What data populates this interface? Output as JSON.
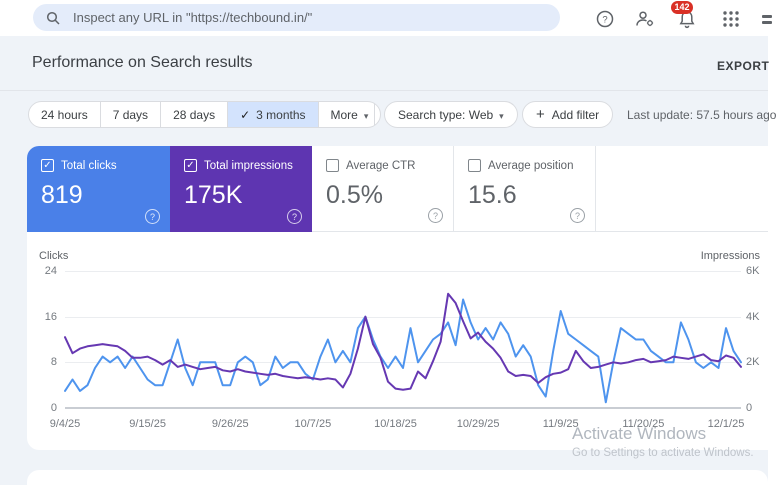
{
  "topbar": {
    "search_placeholder": "Inspect any URL in \"https://techbound.in/\"",
    "notification_count": "142"
  },
  "icons": {
    "search": "magnifier",
    "help": "question-mark-circle",
    "account": "person-with-gear",
    "notifications": "bell",
    "apps": "3x3-dot-grid",
    "export": "download-arrow",
    "check": "✓",
    "caret": "▾",
    "plus": "+"
  },
  "header": {
    "title": "Performance on Search results",
    "export_label": "EXPORT"
  },
  "filters": {
    "date_ranges": [
      "24 hours",
      "7 days",
      "28 days",
      "3 months"
    ],
    "selected_range": "3 months",
    "more_label": "More",
    "search_type_label": "Search type: Web",
    "add_filter_label": "Add filter",
    "last_update": "Last update: 57.5 hours ago"
  },
  "metrics": [
    {
      "label": "Total clicks",
      "value": "819",
      "checked": true,
      "color": "#4a80e8"
    },
    {
      "label": "Total impressions",
      "value": "175K",
      "checked": true,
      "color": "#5e35b1"
    },
    {
      "label": "Average CTR",
      "value": "0.5%",
      "checked": false
    },
    {
      "label": "Average position",
      "value": "15.6",
      "checked": false
    }
  ],
  "watermark": {
    "line1": "Activate Windows",
    "line2": "Go to Settings to activate Windows."
  },
  "chart_data": {
    "type": "line",
    "grid": true,
    "left_axis": {
      "label": "Clicks",
      "ticks": [
        "24",
        "16",
        "8",
        "0"
      ],
      "min": 0,
      "max": 24
    },
    "right_axis": {
      "label": "Impressions",
      "ticks": [
        "6K",
        "4K",
        "2K",
        "0"
      ],
      "min": 0,
      "max": 6000
    },
    "x_tick_labels": [
      "9/4/25",
      "9/15/25",
      "9/26/25",
      "10/7/25",
      "10/18/25",
      "10/29/25",
      "11/9/25",
      "11/20/25",
      "12/1/25"
    ],
    "x_tick_days": [
      0,
      11,
      22,
      33,
      44,
      55,
      66,
      77,
      88
    ],
    "x": [
      "9/4/25",
      "9/5/25",
      "9/6/25",
      "9/7/25",
      "9/8/25",
      "9/9/25",
      "9/10/25",
      "9/11/25",
      "9/12/25",
      "9/13/25",
      "9/14/25",
      "9/15/25",
      "9/16/25",
      "9/17/25",
      "9/18/25",
      "9/19/25",
      "9/20/25",
      "9/21/25",
      "9/22/25",
      "9/23/25",
      "9/24/25",
      "9/25/25",
      "9/26/25",
      "9/27/25",
      "9/28/25",
      "9/29/25",
      "9/30/25",
      "10/1/25",
      "10/2/25",
      "10/3/25",
      "10/4/25",
      "10/5/25",
      "10/6/25",
      "10/7/25",
      "10/8/25",
      "10/9/25",
      "10/10/25",
      "10/11/25",
      "10/12/25",
      "10/13/25",
      "10/14/25",
      "10/15/25",
      "10/16/25",
      "10/17/25",
      "10/18/25",
      "10/19/25",
      "10/20/25",
      "10/21/25",
      "10/22/25",
      "10/23/25",
      "10/24/25",
      "10/25/25",
      "10/26/25",
      "10/27/25",
      "10/28/25",
      "10/29/25",
      "10/30/25",
      "10/31/25",
      "11/1/25",
      "11/2/25",
      "11/3/25",
      "11/4/25",
      "11/5/25",
      "11/6/25",
      "11/7/25",
      "11/8/25",
      "11/9/25",
      "11/10/25",
      "11/11/25",
      "11/12/25",
      "11/13/25",
      "11/14/25",
      "11/15/25",
      "11/16/25",
      "11/17/25",
      "11/18/25",
      "11/19/25",
      "11/20/25",
      "11/21/25",
      "11/22/25",
      "11/23/25",
      "11/24/25",
      "11/25/25",
      "11/26/25",
      "11/27/25",
      "11/28/25",
      "11/29/25",
      "11/30/25",
      "12/1/25",
      "12/2/25",
      "12/3/25"
    ],
    "series": [
      {
        "name": "Clicks",
        "axis": "left",
        "color": "#4e94ee",
        "values": [
          3,
          5,
          3,
          4,
          7,
          9,
          8,
          9,
          7,
          9,
          7,
          5,
          4,
          4,
          8,
          12,
          7,
          4,
          8,
          8,
          8,
          4,
          4,
          8,
          9,
          8,
          4,
          5,
          9,
          7,
          8,
          8,
          6,
          5,
          9,
          12,
          8,
          10,
          8,
          14,
          16,
          12,
          9,
          7,
          9,
          7,
          14,
          8,
          10,
          12,
          13,
          15,
          11,
          19,
          15,
          12,
          14,
          12,
          15,
          13,
          9,
          11,
          9,
          4,
          2,
          10,
          17,
          13,
          12,
          11,
          10,
          9,
          1,
          8,
          14,
          13,
          12,
          12,
          10,
          9,
          8,
          8,
          15,
          12,
          8,
          7,
          8,
          7,
          14,
          10,
          8
        ]
      },
      {
        "name": "Impressions",
        "axis": "right",
        "color": "#6638b2",
        "values": [
          3100,
          2400,
          2600,
          2700,
          2750,
          2800,
          2750,
          2700,
          2500,
          2200,
          2200,
          2250,
          2100,
          1900,
          2100,
          1800,
          1900,
          1800,
          1700,
          1750,
          1800,
          1650,
          1600,
          1700,
          1600,
          1550,
          1500,
          1450,
          1500,
          1400,
          1350,
          1300,
          1350,
          1300,
          1250,
          1300,
          1250,
          900,
          1500,
          2600,
          4000,
          2800,
          2200,
          1150,
          850,
          800,
          850,
          1600,
          1300,
          2050,
          2900,
          5000,
          4600,
          3800,
          3050,
          3300,
          2900,
          2600,
          2200,
          1600,
          1400,
          1450,
          1400,
          1100,
          1350,
          1500,
          1550,
          1700,
          2500,
          2050,
          1750,
          1800,
          1900,
          2000,
          1950,
          2000,
          2100,
          2150,
          2000,
          2050,
          2100,
          2250,
          2200,
          2150,
          2250,
          2350,
          2100,
          2050,
          2300,
          2200,
          1800
        ]
      }
    ]
  }
}
